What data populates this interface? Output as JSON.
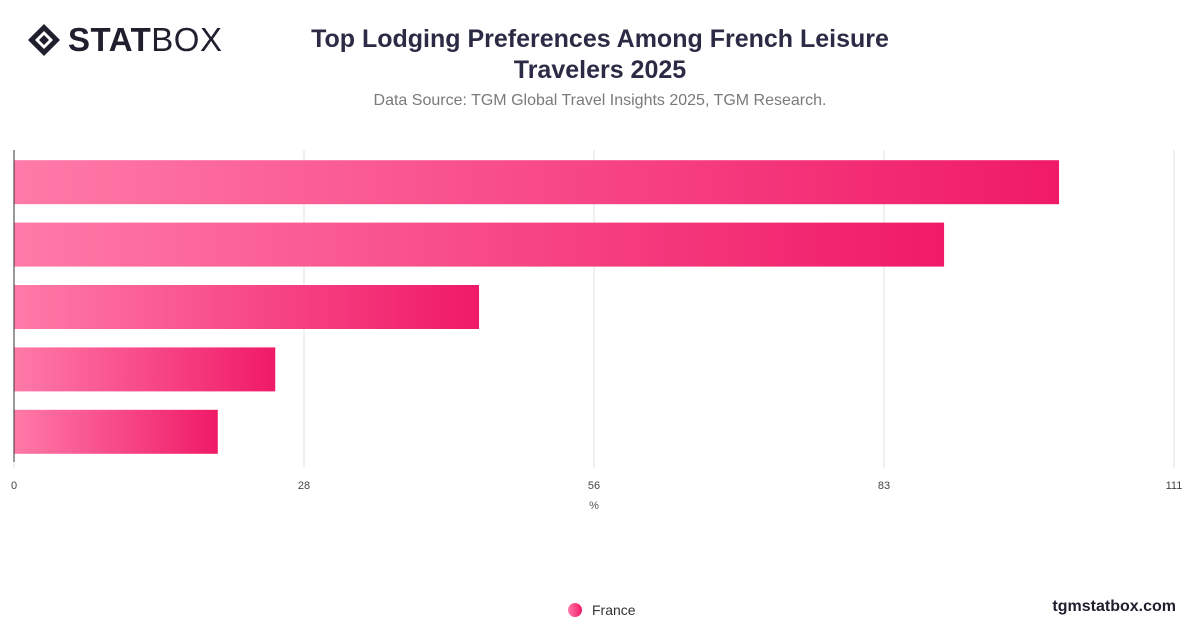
{
  "brand": {
    "logo_bold": "STAT",
    "logo_light": "BOX",
    "website": "tgmstatbox.com"
  },
  "header": {
    "title_line1": "Top Lodging Preferences Among French Leisure",
    "title_line2": "Travelers 2025",
    "subtitle": "Data Source: TGM Global Travel Insights 2025, TGM Research."
  },
  "chart_data": {
    "type": "bar",
    "orientation": "horizontal",
    "title": "Top Lodging Preferences Among French Leisure Travelers 2025",
    "xlabel": "%",
    "ylabel": "",
    "xlim": [
      0,
      111
    ],
    "x_ticks": [
      "0",
      "28",
      "56",
      "83",
      "111"
    ],
    "tick_values": [
      0,
      27.75,
      55.5,
      83.25,
      111
    ],
    "categories": [
      "",
      "",
      "",
      "",
      ""
    ],
    "series": [
      {
        "name": "France",
        "values": [
          100,
          89,
          44.5,
          25,
          19.5
        ]
      }
    ],
    "grid": true,
    "legend_position": "bottom-center",
    "colors": {
      "bar_start": "#ff7aa8",
      "bar_end": "#f01a68",
      "grid": "#e0e0e0",
      "axis": "#333333"
    }
  }
}
